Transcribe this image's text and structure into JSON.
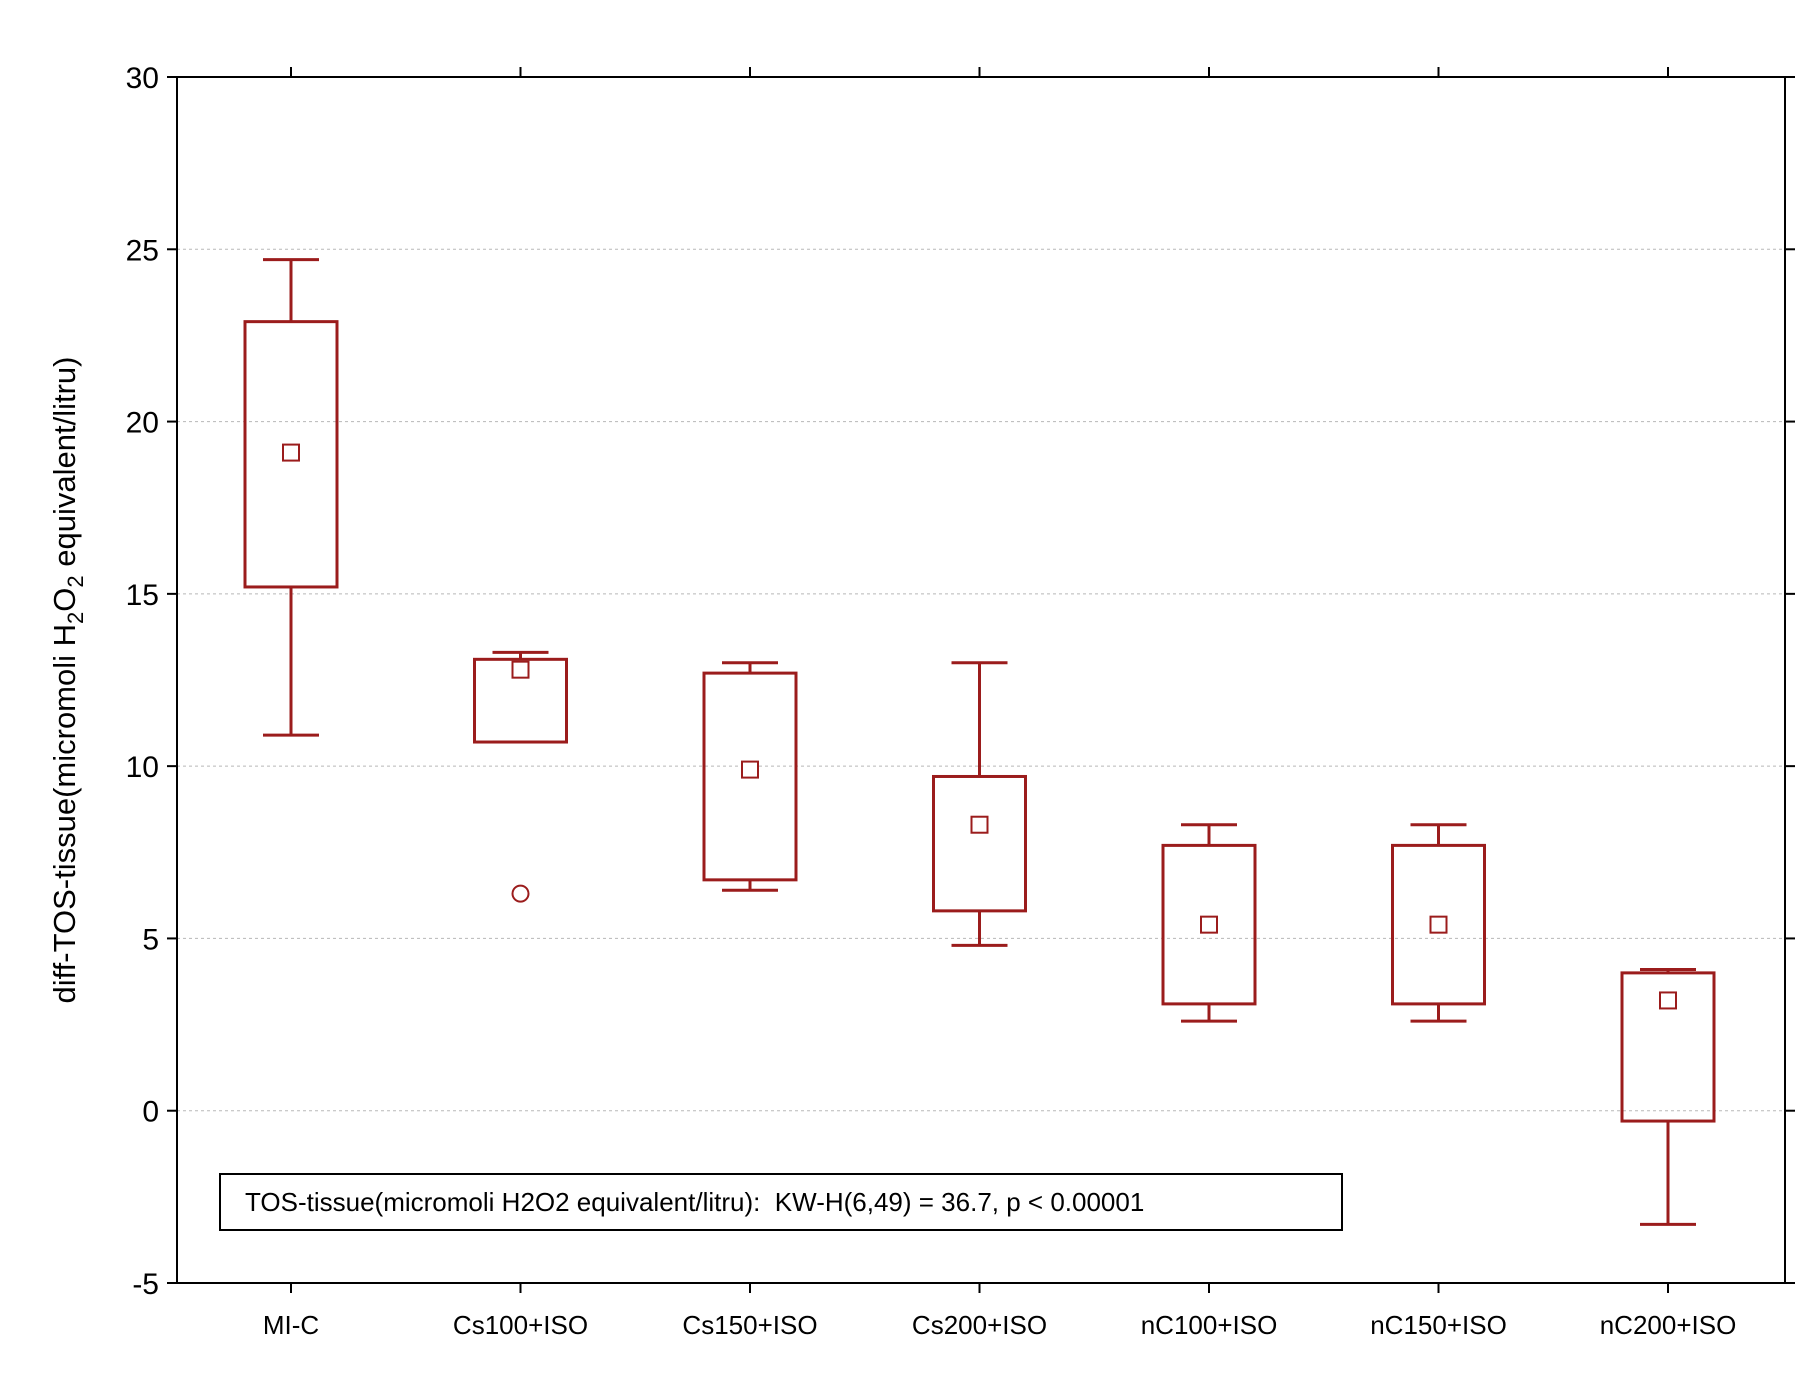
{
  "chart_data": {
    "type": "box",
    "ylabel": {
      "prefix": "diff-TOS-tissue(micromoli H",
      "sub1": "2",
      "mid": "O",
      "sub2": "2",
      "suffix": " equivalent/litru)"
    },
    "xlabel": "",
    "ylim": [
      -5,
      30
    ],
    "yticks": [
      -5,
      0,
      5,
      10,
      15,
      20,
      25,
      30
    ],
    "grid": true,
    "color": "#9b1c1c",
    "annotation": "TOS-tissue(micromoli H2O2 equivalent/litru):  KW-H(6,49) = 36.7, p < 0.00001",
    "categories": [
      "MI-C",
      "Cs100+ISO",
      "Cs150+ISO",
      "Cs200+ISO",
      "nC100+ISO",
      "nC150+ISO",
      "nC200+ISO"
    ],
    "boxes": [
      {
        "min": 10.9,
        "q1": 15.2,
        "median": 19.1,
        "q3": 22.9,
        "max": 24.7,
        "outliers": []
      },
      {
        "min": 10.7,
        "q1": 10.7,
        "median": 12.8,
        "q3": 13.1,
        "max": 13.3,
        "outliers": [
          6.3
        ]
      },
      {
        "min": 6.4,
        "q1": 6.7,
        "median": 9.9,
        "q3": 12.7,
        "max": 13.0,
        "outliers": []
      },
      {
        "min": 4.8,
        "q1": 5.8,
        "median": 8.3,
        "q3": 9.7,
        "max": 13.0,
        "outliers": []
      },
      {
        "min": 2.6,
        "q1": 3.1,
        "median": 5.4,
        "q3": 7.7,
        "max": 8.3,
        "outliers": []
      },
      {
        "min": 2.6,
        "q1": 3.1,
        "median": 5.4,
        "q3": 7.7,
        "max": 8.3,
        "outliers": []
      },
      {
        "min": -3.3,
        "q1": -0.3,
        "median": 3.2,
        "q3": 4.0,
        "max": 4.1,
        "outliers": []
      }
    ]
  }
}
